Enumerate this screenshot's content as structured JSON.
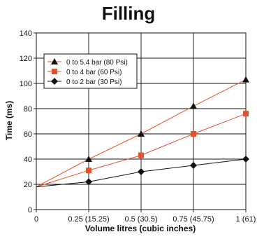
{
  "chart_data": {
    "type": "line",
    "title": "Filling",
    "xlabel": "Volume litres (cubic inches)",
    "ylabel": "Time (ms)",
    "x": [
      0,
      0.25,
      0.5,
      0.75,
      1
    ],
    "x_tick_labels": [
      "0",
      "0.25 (15.25)",
      "0.5 (30.5)",
      "0.75 (45.75)",
      "1 (61)"
    ],
    "ylim": [
      0,
      140
    ],
    "y_ticks": [
      0,
      20,
      40,
      60,
      80,
      100,
      120,
      140
    ],
    "grid": true,
    "legend_position": "top-left",
    "series": [
      {
        "name": "0 to 5.4 bar (80 Psi)",
        "marker": "triangle",
        "color": "#e8502a",
        "marker_color": "#111111",
        "values": [
          18,
          40,
          60,
          82,
          103
        ]
      },
      {
        "name": "0 to 4 bar   (60 Psi)",
        "marker": "square",
        "color": "#e8502a",
        "marker_color": "#e8502a",
        "values": [
          18,
          31,
          43,
          60,
          76
        ]
      },
      {
        "name": "0 to 2 bar   (30 Psi)",
        "marker": "diamond",
        "color": "#111111",
        "marker_color": "#111111",
        "values": [
          18,
          22,
          30,
          35,
          40
        ]
      }
    ]
  }
}
